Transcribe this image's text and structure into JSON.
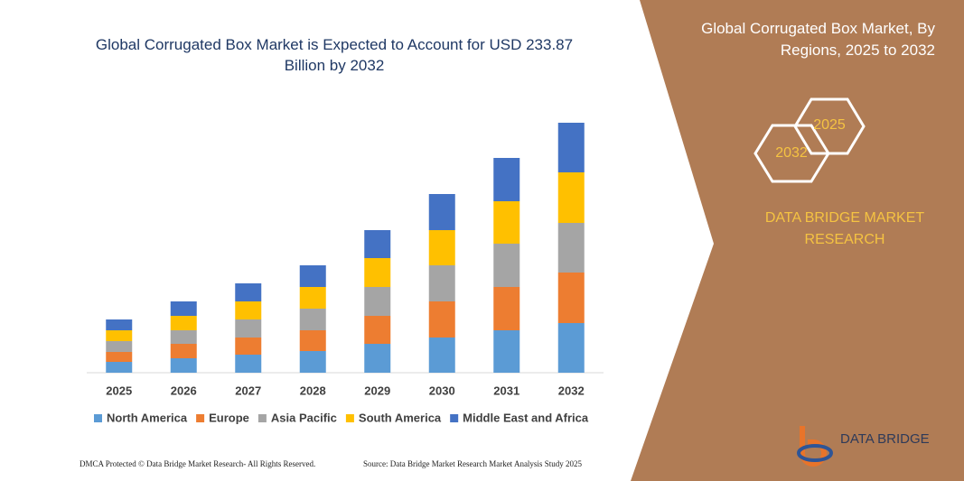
{
  "chart_data": {
    "type": "stacked_bar",
    "title": "Global Corrugated Box Market is Expected to Account for USD 233.87 Billion by 2032",
    "categories": [
      "2025",
      "2026",
      "2027",
      "2028",
      "2029",
      "2030",
      "2031",
      "2032"
    ],
    "series": [
      {
        "name": "North America",
        "color": "#5b9bd5",
        "values": [
          12,
          16,
          20,
          24,
          32,
          39,
          47,
          55
        ]
      },
      {
        "name": "Europe",
        "color": "#ed7d31",
        "values": [
          11,
          16,
          19,
          23,
          31,
          40,
          48,
          56
        ]
      },
      {
        "name": "Asia Pacific",
        "color": "#a5a5a5",
        "values": [
          12,
          15,
          20,
          24,
          32,
          40,
          48,
          55
        ]
      },
      {
        "name": "South America",
        "color": "#ffc000",
        "values": [
          12,
          16,
          20,
          24,
          32,
          39,
          47,
          56
        ]
      },
      {
        "name": "Middle East and Africa",
        "color": "#4472c4",
        "values": [
          12,
          16,
          20,
          24,
          31,
          40,
          48,
          55
        ]
      }
    ]
  },
  "panel": {
    "title": "Global Corrugated Box Market, By Regions, 2025 to 2032",
    "hexagons": [
      "2025",
      "2032"
    ],
    "brand": "DATA BRIDGE MARKET RESEARCH",
    "logo": "DATA BRIDGE"
  },
  "footer": [
    "DMCA Protected © Data Bridge Market Research- All Rights Reserved.",
    "Source: Data Bridge Market Research Market Analysis Study 2025"
  ]
}
